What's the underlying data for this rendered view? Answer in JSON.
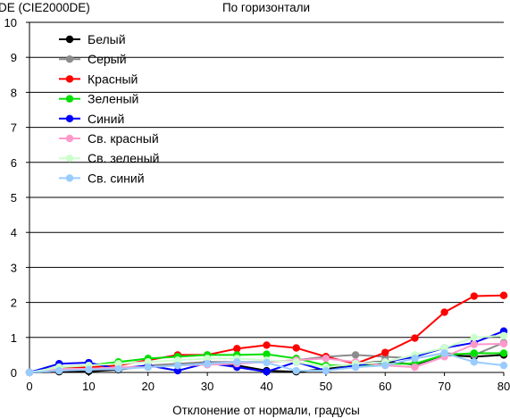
{
  "chart_data": {
    "type": "line",
    "title": "По горизонтали",
    "ylabel": "DE (CIE2000DE)",
    "xlabel": "Отклонение от нормали, градусы",
    "xlim": [
      0,
      80
    ],
    "ylim": [
      0,
      10
    ],
    "x_ticks": [
      0,
      10,
      20,
      30,
      40,
      50,
      60,
      70,
      80
    ],
    "y_ticks": [
      0,
      1,
      2,
      3,
      4,
      5,
      6,
      7,
      8,
      9,
      10
    ],
    "grid": "horizontal",
    "legend_position": "top-left",
    "x": [
      0,
      5,
      10,
      15,
      20,
      25,
      30,
      35,
      40,
      45,
      50,
      55,
      60,
      65,
      70,
      75,
      80
    ],
    "series": [
      {
        "name": "Белый",
        "color": "#000000",
        "values": [
          0,
          0.02,
          0.03,
          0.08,
          0.18,
          0.22,
          0.25,
          0.2,
          0.05,
          0.02,
          0.1,
          0.25,
          0.32,
          0.22,
          0.5,
          0.45,
          0.5
        ]
      },
      {
        "name": "Серый",
        "color": "#8c8c8c",
        "values": [
          0,
          0.05,
          0.1,
          0.12,
          0.2,
          0.25,
          0.3,
          0.3,
          0.3,
          0.35,
          0.45,
          0.5,
          0.45,
          0.4,
          0.55,
          0.5,
          0.85
        ]
      },
      {
        "name": "Красный",
        "color": "#ff0000",
        "values": [
          0,
          0.15,
          0.15,
          0.2,
          0.35,
          0.5,
          0.5,
          0.68,
          0.78,
          0.7,
          0.45,
          0.25,
          0.57,
          0.98,
          1.72,
          2.18,
          2.2
        ]
      },
      {
        "name": "Зеленый",
        "color": "#00e000",
        "values": [
          0,
          0.15,
          0.2,
          0.3,
          0.4,
          0.45,
          0.5,
          0.5,
          0.52,
          0.4,
          0.2,
          0.2,
          0.25,
          0.25,
          0.5,
          0.55,
          0.55
        ]
      },
      {
        "name": "Синий",
        "color": "#0000ff",
        "values": [
          0,
          0.25,
          0.28,
          0.1,
          0.2,
          0.05,
          0.27,
          0.15,
          0.02,
          0.3,
          0.05,
          0.2,
          0.3,
          0.45,
          0.7,
          0.85,
          1.18
        ]
      },
      {
        "name": "Св. красный",
        "color": "#ff99cc",
        "values": [
          0,
          0.1,
          0.1,
          0.15,
          0.15,
          0.2,
          0.22,
          0.25,
          0.3,
          0.35,
          0.4,
          0.3,
          0.2,
          0.15,
          0.45,
          0.8,
          0.82
        ]
      },
      {
        "name": "Св. зеленый",
        "color": "#ccffcc",
        "values": [
          0,
          0.15,
          0.2,
          0.25,
          0.3,
          0.35,
          0.4,
          0.4,
          0.35,
          0.3,
          0.15,
          0.25,
          0.3,
          0.5,
          0.7,
          1.0,
          1.05
        ]
      },
      {
        "name": "Св. синий",
        "color": "#99ccff",
        "values": [
          0,
          0.05,
          0.08,
          0.1,
          0.15,
          0.2,
          0.25,
          0.3,
          0.28,
          0.05,
          0.05,
          0.15,
          0.2,
          0.4,
          0.55,
          0.3,
          0.2
        ]
      }
    ]
  }
}
